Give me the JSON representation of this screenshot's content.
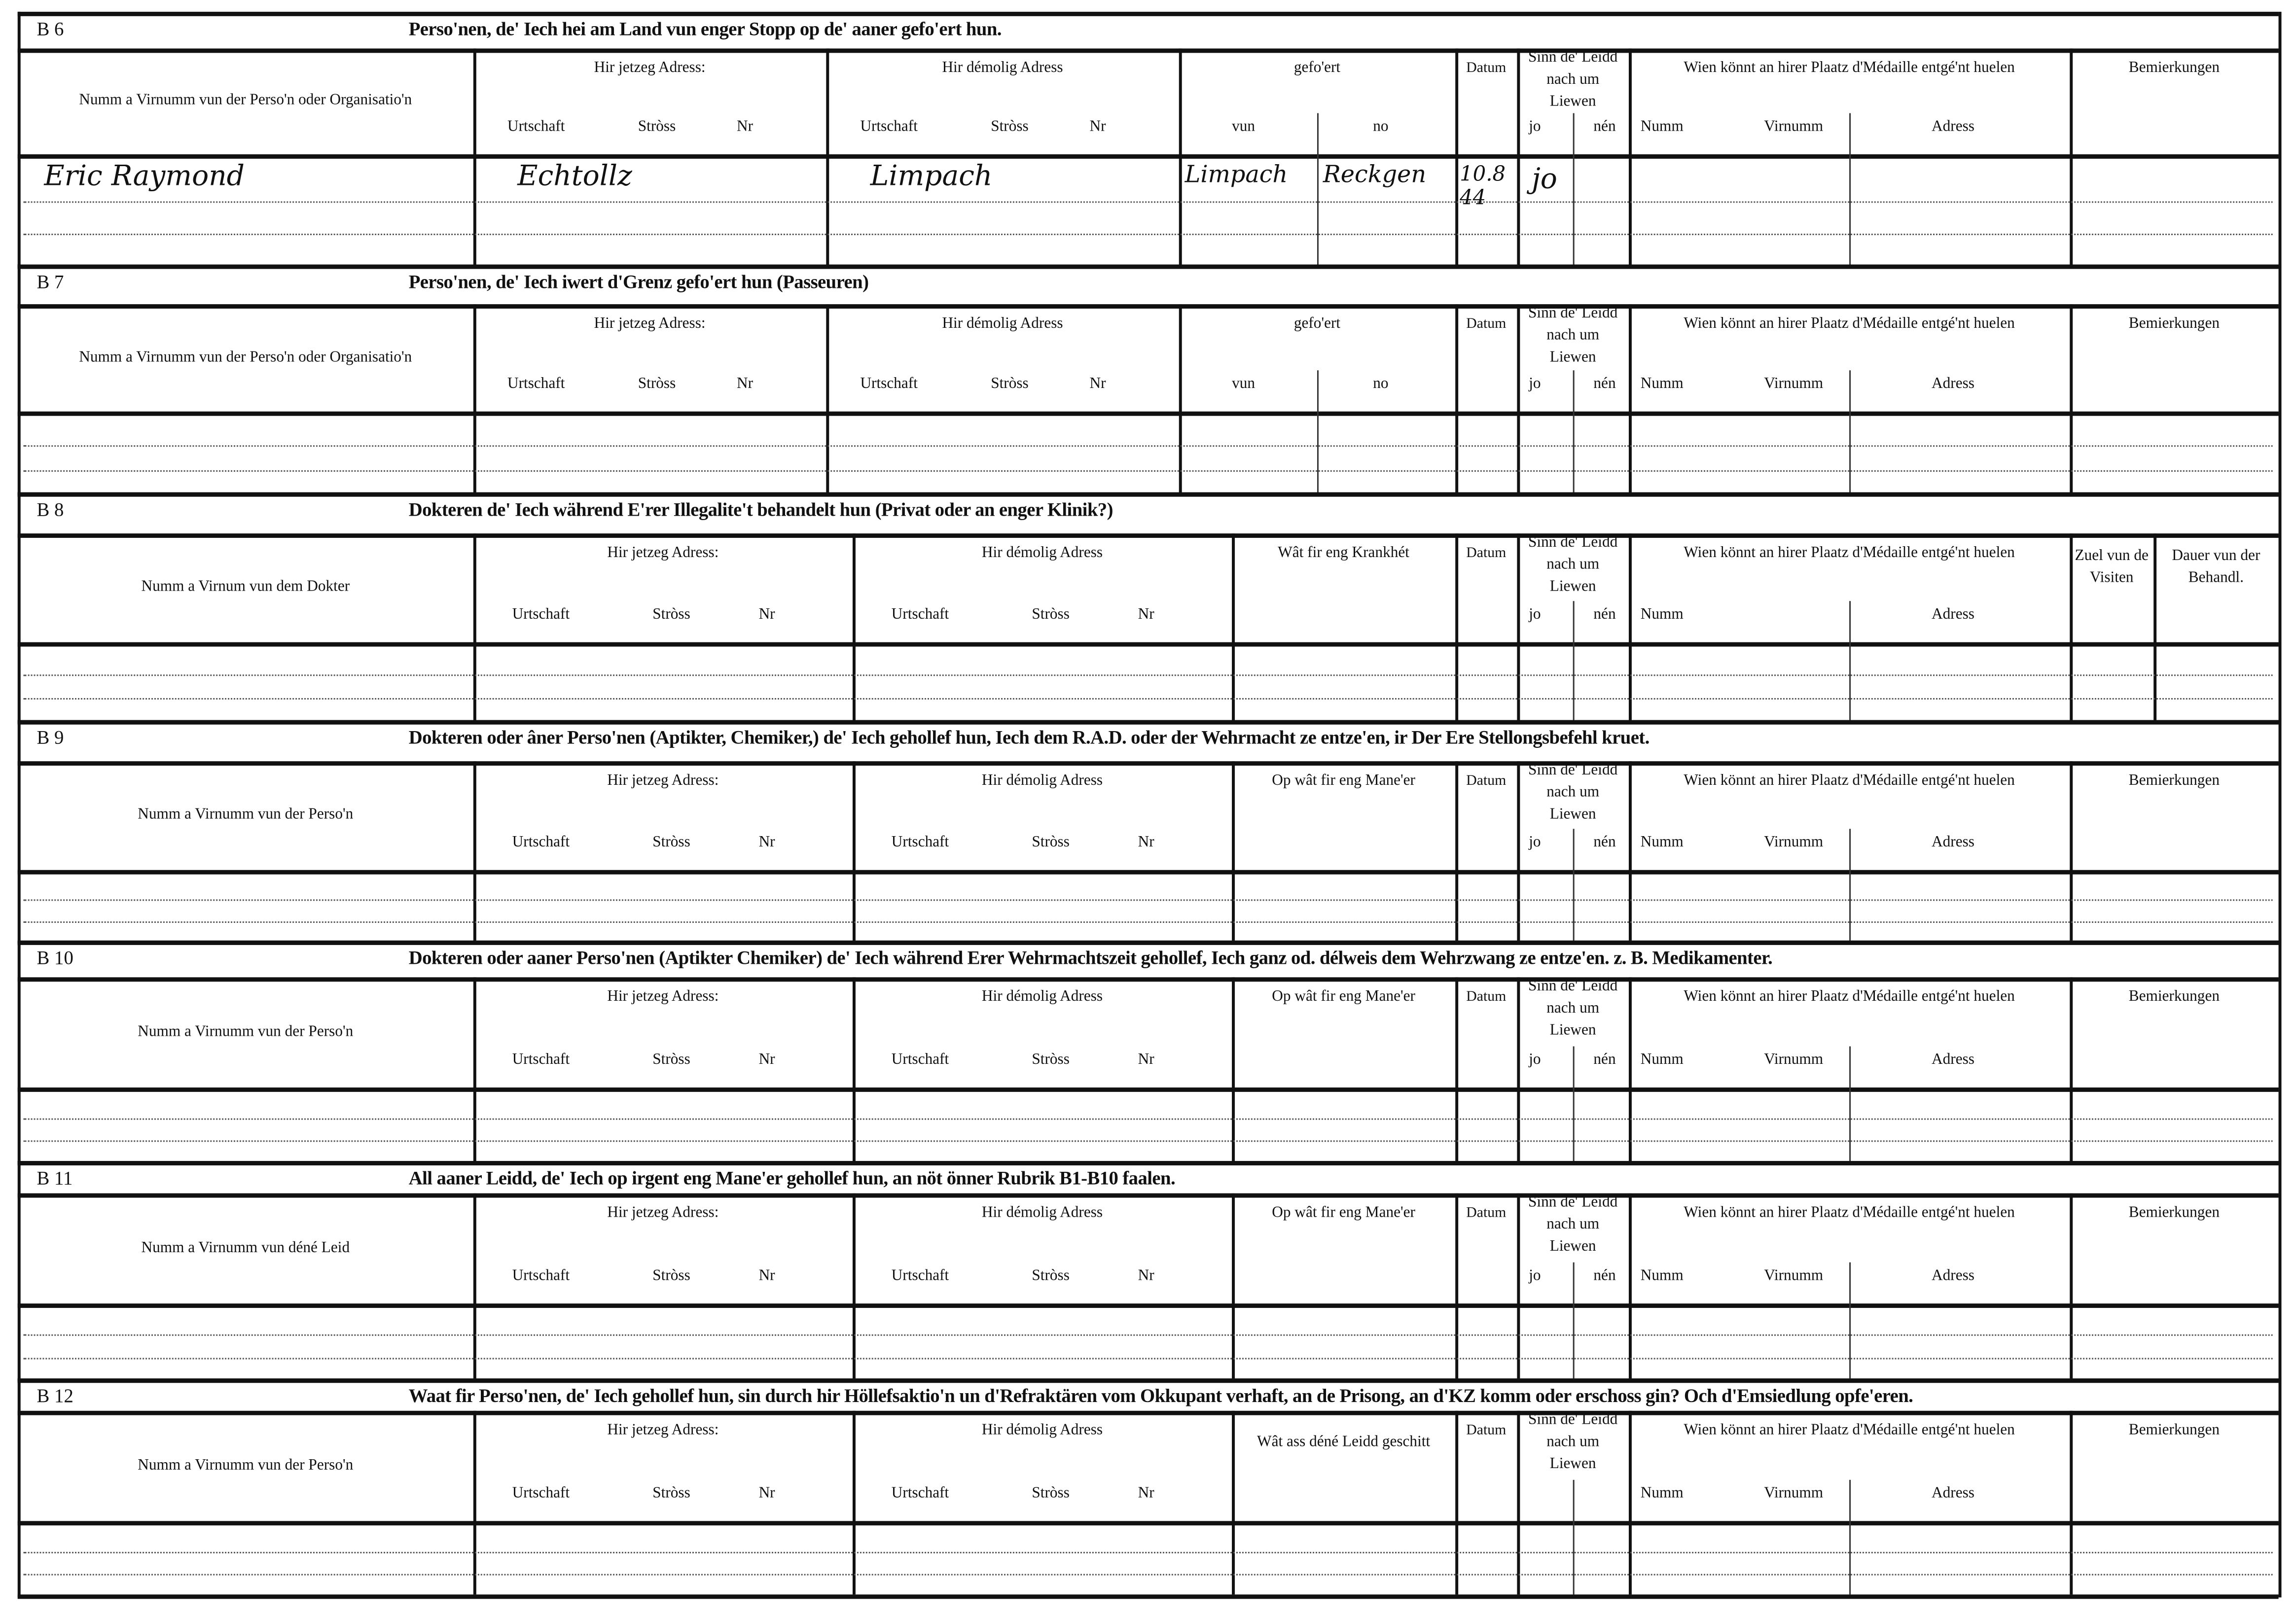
{
  "sections": [
    {
      "code": "B 6",
      "title": "Perso'nen, de' Iech hei am Land vun enger Stopp  op de' aaner gefo'ert hun.",
      "type": "A",
      "name_header": "Numm a Virnumm vun der Perso'n oder Organisatio'n",
      "current_address": "Hir jetzeg Adress:",
      "former_address": "Hir démolig Adress",
      "address_sub": [
        "Urtschaft",
        "Stròss",
        "Nr"
      ],
      "col3_header": "gefo'ert",
      "col3_sub": [
        "vun",
        "no"
      ],
      "date_header": "Datum",
      "alive_header": "Sinn de' Leidd nach um Liewen",
      "alive_sub": [
        "jo",
        "nén"
      ],
      "medal_header": "Wien könnt an hirer Plaatz d'Médaille entgé'nt huelen",
      "medal_sub": [
        "Numm",
        "Virnumm",
        "Adress"
      ],
      "remarks_header": "Bemierkungen",
      "entries": [
        {
          "name": "Eric Raymond",
          "current_town": "Echtollz",
          "former_town": "Limpach",
          "from": "Limpach",
          "to": "Reckgen",
          "date": "10.8 44",
          "alive": "jo"
        }
      ]
    },
    {
      "code": "B 7",
      "title": "Perso'nen, de' Iech iwert d'Grenz gefo'ert hun  (Passeuren)",
      "type": "A",
      "name_header": "Numm a Virnumm vun der Perso'n oder Organisatio'n",
      "current_address": "Hir jetzeg Adress:",
      "former_address": "Hir démolig Adress",
      "address_sub": [
        "Urtschaft",
        "Stròss",
        "Nr"
      ],
      "col3_header": "gefo'ert",
      "col3_sub": [
        "vun",
        "no"
      ],
      "date_header": "Datum",
      "alive_header": "Sinn de' Leidd nach um Liewen",
      "alive_sub": [
        "jo",
        "nén"
      ],
      "medal_header": "Wien könnt an hirer Plaatz d'Médaille entgé'nt huelen",
      "medal_sub": [
        "Numm",
        "Virnumm",
        "Adress"
      ],
      "remarks_header": "Bemierkungen",
      "entries": []
    },
    {
      "code": "B 8",
      "title": "Dokteren de' Iech während E'rer Illegalite't behandelt hun  (Privat  oder an enger Klinik?)",
      "type": "B",
      "name_header": "Numm a Virnum vun dem Dokter",
      "current_address": "Hir jetzeg Adress:",
      "former_address": "Hir démolig Adress",
      "address_sub": [
        "Urtschaft",
        "Stròss",
        "Nr"
      ],
      "col3_header": "Wât fir eng Krankhét",
      "date_header": "Datum",
      "alive_header": "Sinn de' Leidd nach um Liewen",
      "alive_sub": [
        "jo",
        "nén"
      ],
      "medal_header": "Wien könnt an hirer Plaatz d'Médaille entgé'nt huelen",
      "medal_sub": [
        "Numm",
        "",
        "Adress"
      ],
      "visits_header": "Zuel vun de Visiten",
      "duration_header": "Dauer vun der Behandl.",
      "entries": []
    },
    {
      "code": "B 9",
      "title": "Dokteren oder âner Perso'nen (Aptikter, Chemiker,) de' Iech gehollef hun, Iech dem R.A.D. oder der Wehrmacht  ze entze'en,  ir Der Ere Stellongsbefehl kruet.",
      "type": "C",
      "name_header": "Numm a Virnumm vun der Perso'n",
      "current_address": "Hir jetzeg Adress:",
      "former_address": "Hir démolig Adress",
      "address_sub": [
        "Urtschaft",
        "Stròss",
        "Nr"
      ],
      "col3_header": "Op wât fir eng Mane'er",
      "date_header": "Datum",
      "alive_header": "Sinn de' Leidd nach um Liewen",
      "alive_sub": [
        "jo",
        "nén"
      ],
      "medal_header": "Wien könnt an hirer Plaatz d'Médaille entgé'nt huelen",
      "medal_sub": [
        "Numm",
        "Virnumm",
        "Adress"
      ],
      "remarks_header": "Bemierkungen",
      "entries": []
    },
    {
      "code": "B 10",
      "title": "Dokteren oder aaner Perso'nen (Aptikter Chemiker) de' Iech während Erer Wehrmachtszeit gehollef, Iech ganz od. délweis dem Wehrzwang ze entze'en. z. B. Medikamenter.",
      "type": "C",
      "name_header": "Numm a Virnumm vun der Perso'n",
      "current_address": "Hir jetzeg Adress:",
      "former_address": "Hir démolig Adress",
      "address_sub": [
        "Urtschaft",
        "Stròss",
        "Nr"
      ],
      "col3_header": "Op wât fir eng Mane'er",
      "date_header": "Datum",
      "alive_header": "Sinn de' Leidd nach um Liewen",
      "alive_sub": [
        "jo",
        "nén"
      ],
      "medal_header": "Wien könnt an hirer Plaatz d'Médaille entgé'nt huelen",
      "medal_sub": [
        "Numm",
        "Virnumm",
        "Adress"
      ],
      "remarks_header": "Bemierkungen",
      "entries": []
    },
    {
      "code": "B 11",
      "title": "All aaner Leidd, de' Iech op irgent eng Mane'er  gehollef hun,  an nöt önner Rubrik  B1-B10  faalen.",
      "type": "C",
      "name_header": "Numm  a  Virnumm  vun  déné  Leid",
      "current_address": "Hir jetzeg Adress:",
      "former_address": "Hir démolig Adress",
      "address_sub": [
        "Urtschaft",
        "Stròss",
        "Nr"
      ],
      "col3_header": "Op wât fir eng Mane'er",
      "date_header": "Datum",
      "alive_header": "Sinn de' Leidd nach um Liewen",
      "alive_sub": [
        "jo",
        "nén"
      ],
      "medal_header": "Wien könnt an hirer Plaatz d'Médaille entgé'nt huelen",
      "medal_sub": [
        "Numm",
        "Virnumm",
        "Adress"
      ],
      "remarks_header": "Bemierkungen",
      "entries": []
    },
    {
      "code": "B 12",
      "title": "Waat fir Perso'nen, de' Iech gehollef hun, sin durch hir Höllefsaktio'n  un  d'Refraktären vom Okkupant verhaft, an de Prisong, an d'KZ komm oder  erschoss gin? Och d'Emsiedlung opfe'eren.",
      "type": "D",
      "name_header": "Numm a Virnumm vun der Perso'n",
      "current_address": "Hir jetzeg Adress:",
      "former_address": "Hir démolig Adress",
      "address_sub": [
        "Urtschaft",
        "Stròss",
        "Nr"
      ],
      "col3_header": "Wât ass déné Leidd geschitt",
      "date_header": "Datum",
      "alive_header": "Sinn de' Leidd nach um Liewen",
      "alive_sub": [
        "",
        ""
      ],
      "medal_header": "Wien könnt an hirer Plaatz d'Médaille entgé'nt huelen",
      "medal_sub": [
        "Numm",
        "Virnumm",
        "Adress"
      ],
      "remarks_header": "Bemierkungen",
      "entries": []
    }
  ]
}
